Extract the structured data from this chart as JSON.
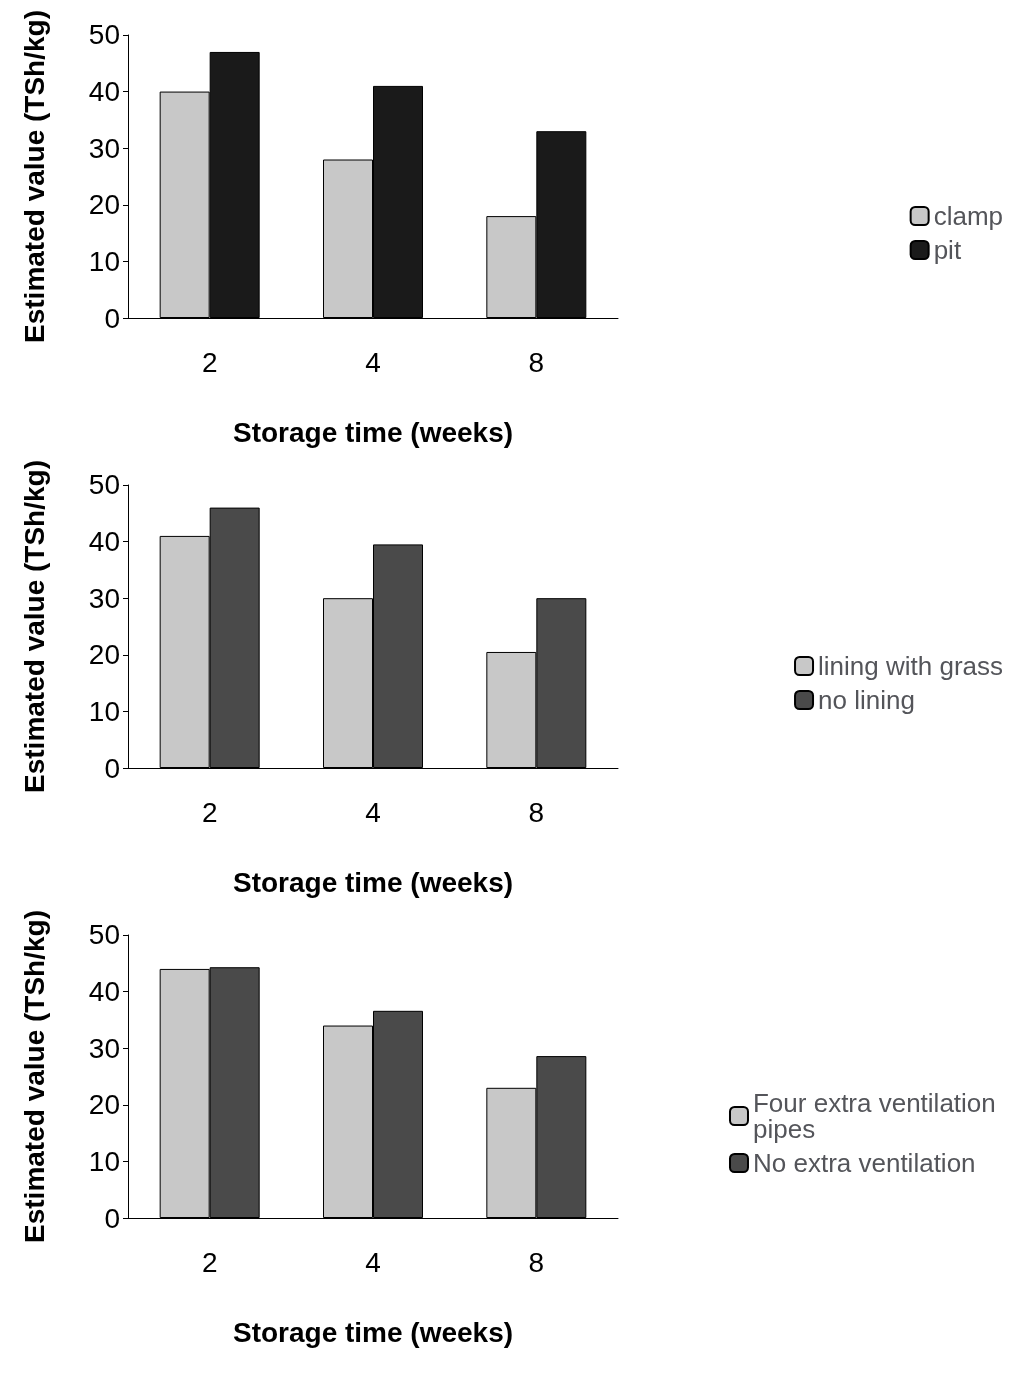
{
  "chart_data": [
    {
      "type": "bar",
      "categories": [
        "2",
        "4",
        "8"
      ],
      "xlabel": "Storage time (weeks)",
      "ylabel": "Estimated value (TSh/kg)",
      "ylim": [
        0,
        50
      ],
      "yticks": [
        0,
        10,
        20,
        30,
        40,
        50
      ],
      "grid": false,
      "legend": "right",
      "series": [
        {
          "name": "clamp",
          "color": "#c8c8c8",
          "values": [
            40,
            28,
            18
          ]
        },
        {
          "name": "pit",
          "color": "#1a1a1a",
          "values": [
            47,
            41,
            33
          ]
        }
      ]
    },
    {
      "type": "bar",
      "categories": [
        "2",
        "4",
        "8"
      ],
      "xlabel": "Storage time (weeks)",
      "ylabel": "Estimated value (TSh/kg)",
      "ylim": [
        0,
        50
      ],
      "yticks": [
        0,
        10,
        20,
        30,
        40,
        50
      ],
      "grid": false,
      "legend": "right",
      "series": [
        {
          "name": "lining with grass",
          "color": "#c8c8c8",
          "values": [
            41,
            30,
            20.5
          ]
        },
        {
          "name": "no lining",
          "color": "#4a4a4a",
          "values": [
            46,
            39.5,
            30
          ]
        }
      ]
    },
    {
      "type": "bar",
      "categories": [
        "2",
        "4",
        "8"
      ],
      "xlabel": "Storage time (weeks)",
      "ylabel": "Estimated value (TSh/kg)",
      "ylim": [
        0,
        50
      ],
      "yticks": [
        0,
        10,
        20,
        30,
        40,
        50
      ],
      "grid": false,
      "legend": "right",
      "series": [
        {
          "name": "Four extra ventilation pipes",
          "color": "#c8c8c8",
          "values": [
            44,
            34,
            23
          ]
        },
        {
          "name": "No extra ventilation",
          "color": "#4a4a4a",
          "values": [
            44.3,
            36.6,
            28.6
          ]
        }
      ]
    }
  ]
}
